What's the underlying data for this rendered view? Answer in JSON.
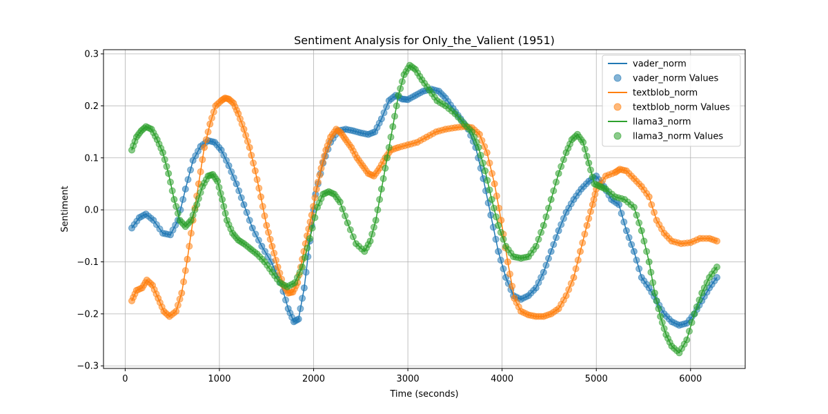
{
  "chart_data": {
    "type": "line",
    "title": "Sentiment Analysis for Only_the_Valient (1951)",
    "xlabel": "Time (seconds)",
    "ylabel": "Sentiment",
    "xlim": [
      -230,
      6580
    ],
    "ylim": [
      -0.305,
      0.308
    ],
    "xticks": [
      0,
      1000,
      2000,
      3000,
      4000,
      5000,
      6000
    ],
    "xtick_labels": [
      "0",
      "1000",
      "2000",
      "3000",
      "4000",
      "5000",
      "6000"
    ],
    "yticks": [
      -0.3,
      -0.2,
      -0.1,
      0.0,
      0.1,
      0.2,
      0.3
    ],
    "ytick_labels": [
      "−0.3",
      "−0.2",
      "−0.1",
      "0.0",
      "0.1",
      "0.2",
      "0.3"
    ],
    "grid": true,
    "legend_position": "top-right",
    "legend": [
      "vader_norm",
      "vader_norm Values",
      "textblob_norm",
      "textblob_norm Values",
      "llama3_norm",
      "llama3_norm Values"
    ],
    "series": [
      {
        "name": "vader_norm",
        "color": "#1f77b4",
        "x": [
          70,
          150,
          220,
          300,
          400,
          480,
          560,
          640,
          720,
          800,
          880,
          950,
          1020,
          1100,
          1180,
          1260,
          1350,
          1450,
          1550,
          1650,
          1730,
          1790,
          1840,
          1900,
          1960,
          2020,
          2100,
          2180,
          2260,
          2340,
          2420,
          2500,
          2580,
          2650,
          2720,
          2800,
          2870,
          2940,
          3000,
          3080,
          3160,
          3250,
          3330,
          3400,
          3480,
          3560,
          3640,
          3720,
          3800,
          3880,
          3960,
          4040,
          4120,
          4200,
          4280,
          4360,
          4440,
          4520,
          4600,
          4680,
          4760,
          4840,
          4920,
          5000,
          5080,
          5160,
          5240,
          5320,
          5400,
          5480,
          5560,
          5640,
          5720,
          5800,
          5880,
          5960,
          6040,
          6120,
          6200,
          6280
        ],
        "y": [
          -0.035,
          -0.015,
          -0.008,
          -0.02,
          -0.045,
          -0.048,
          -0.02,
          0.04,
          0.095,
          0.122,
          0.133,
          0.13,
          0.115,
          0.085,
          0.05,
          0.01,
          -0.035,
          -0.07,
          -0.1,
          -0.14,
          -0.19,
          -0.215,
          -0.21,
          -0.15,
          -0.06,
          0.03,
          0.09,
          0.13,
          0.152,
          0.155,
          0.152,
          0.148,
          0.145,
          0.15,
          0.175,
          0.21,
          0.22,
          0.213,
          0.212,
          0.22,
          0.228,
          0.232,
          0.228,
          0.215,
          0.195,
          0.175,
          0.155,
          0.12,
          0.06,
          -0.01,
          -0.08,
          -0.13,
          -0.165,
          -0.172,
          -0.165,
          -0.15,
          -0.12,
          -0.08,
          -0.04,
          -0.005,
          0.02,
          0.04,
          0.055,
          0.065,
          0.045,
          0.02,
          0.01,
          -0.04,
          -0.08,
          -0.13,
          -0.15,
          -0.175,
          -0.2,
          -0.215,
          -0.222,
          -0.218,
          -0.2,
          -0.175,
          -0.15,
          -0.13
        ]
      },
      {
        "name": "textblob_norm",
        "color": "#ff7f0e",
        "x": [
          70,
          120,
          180,
          230,
          290,
          350,
          410,
          470,
          540,
          600,
          660,
          720,
          780,
          840,
          900,
          960,
          1020,
          1060,
          1100,
          1150,
          1200,
          1260,
          1320,
          1380,
          1440,
          1500,
          1560,
          1620,
          1680,
          1730,
          1780,
          1830,
          1880,
          1930,
          1980,
          2030,
          2080,
          2130,
          2180,
          2240,
          2290,
          2340,
          2400,
          2460,
          2520,
          2580,
          2640,
          2700,
          2760,
          2820,
          2900,
          3000,
          3100,
          3200,
          3300,
          3400,
          3500,
          3600,
          3680,
          3760,
          3840,
          3920,
          3990,
          4060,
          4130,
          4200,
          4280,
          4360,
          4440,
          4520,
          4600,
          4680,
          4760,
          4830,
          4900,
          4960,
          5000,
          5100,
          5200,
          5250,
          5320,
          5400,
          5480,
          5560,
          5640,
          5720,
          5800,
          5900,
          6000,
          6100,
          6200,
          6280
        ],
        "y": [
          -0.175,
          -0.155,
          -0.15,
          -0.135,
          -0.145,
          -0.17,
          -0.195,
          -0.205,
          -0.195,
          -0.16,
          -0.095,
          -0.02,
          0.05,
          0.12,
          0.165,
          0.2,
          0.21,
          0.215,
          0.213,
          0.205,
          0.185,
          0.155,
          0.12,
          0.075,
          0.025,
          -0.03,
          -0.07,
          -0.11,
          -0.145,
          -0.16,
          -0.158,
          -0.14,
          -0.095,
          -0.05,
          -0.01,
          0.04,
          0.08,
          0.115,
          0.14,
          0.155,
          0.148,
          0.135,
          0.12,
          0.1,
          0.085,
          0.07,
          0.065,
          0.08,
          0.1,
          0.115,
          0.12,
          0.125,
          0.13,
          0.14,
          0.15,
          0.155,
          0.158,
          0.16,
          0.158,
          0.145,
          0.11,
          0.05,
          -0.02,
          -0.1,
          -0.17,
          -0.195,
          -0.202,
          -0.205,
          -0.205,
          -0.2,
          -0.19,
          -0.165,
          -0.13,
          -0.08,
          -0.03,
          0.01,
          0.04,
          0.065,
          0.072,
          0.078,
          0.075,
          0.06,
          0.045,
          0.025,
          -0.02,
          -0.045,
          -0.06,
          -0.065,
          -0.063,
          -0.055,
          -0.055,
          -0.06
        ]
      },
      {
        "name": "llama3_norm",
        "color": "#2ca02c",
        "x": [
          70,
          120,
          170,
          220,
          280,
          340,
          400,
          460,
          520,
          580,
          640,
          700,
          760,
          820,
          880,
          930,
          980,
          1030,
          1080,
          1140,
          1200,
          1260,
          1330,
          1400,
          1480,
          1560,
          1640,
          1720,
          1800,
          1880,
          1960,
          2040,
          2100,
          2160,
          2220,
          2280,
          2360,
          2450,
          2540,
          2600,
          2660,
          2720,
          2780,
          2840,
          2900,
          2960,
          3020,
          3080,
          3150,
          3230,
          3310,
          3400,
          3500,
          3600,
          3680,
          3750,
          3820,
          3890,
          3960,
          4040,
          4120,
          4200,
          4280,
          4360,
          4440,
          4520,
          4600,
          4680,
          4740,
          4800,
          4860,
          4920,
          4980,
          5040,
          5100,
          5200,
          5300,
          5400,
          5480,
          5560,
          5620,
          5680,
          5740,
          5800,
          5880,
          5960,
          6040,
          6120,
          6200,
          6280
        ],
        "y": [
          0.115,
          0.14,
          0.152,
          0.16,
          0.155,
          0.135,
          0.11,
          0.07,
          0.02,
          -0.02,
          -0.032,
          -0.02,
          0.01,
          0.045,
          0.065,
          0.068,
          0.055,
          0.02,
          -0.02,
          -0.045,
          -0.058,
          -0.065,
          -0.075,
          -0.085,
          -0.1,
          -0.12,
          -0.14,
          -0.148,
          -0.14,
          -0.11,
          -0.055,
          0.005,
          0.03,
          0.035,
          0.03,
          0.015,
          -0.025,
          -0.065,
          -0.08,
          -0.06,
          -0.02,
          0.04,
          0.1,
          0.16,
          0.22,
          0.26,
          0.278,
          0.27,
          0.25,
          0.23,
          0.21,
          0.2,
          0.185,
          0.165,
          0.15,
          0.12,
          0.075,
          0.02,
          -0.03,
          -0.07,
          -0.09,
          -0.093,
          -0.09,
          -0.07,
          -0.03,
          0.02,
          0.07,
          0.11,
          0.135,
          0.145,
          0.13,
          0.09,
          0.05,
          0.045,
          0.04,
          0.025,
          0.02,
          0.005,
          -0.04,
          -0.1,
          -0.16,
          -0.205,
          -0.24,
          -0.262,
          -0.275,
          -0.25,
          -0.2,
          -0.16,
          -0.13,
          -0.11
        ]
      }
    ]
  }
}
